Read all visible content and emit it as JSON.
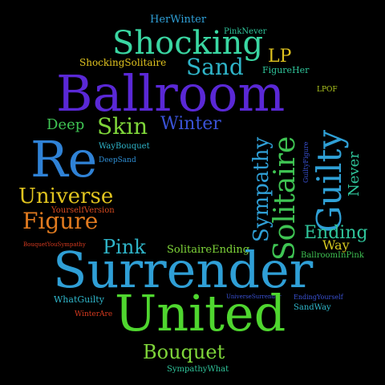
{
  "words": [
    {
      "text": "HerWinter",
      "color": "#2f9fd6"
    },
    {
      "text": "PinkNever",
      "color": "#2fc49a"
    },
    {
      "text": "Shocking",
      "color": "#3ad6a2"
    },
    {
      "text": "LP",
      "color": "#e0c31f"
    },
    {
      "text": "ShockingSolitaire",
      "color": "#e0c31f"
    },
    {
      "text": "Sand",
      "color": "#2fb5c9"
    },
    {
      "text": "FigureHer",
      "color": "#2fc49a"
    },
    {
      "text": "Ballroom",
      "color": "#5a28d6"
    },
    {
      "text": "LPOF",
      "color": "#b0c81f"
    },
    {
      "text": "Deep",
      "color": "#3fc453"
    },
    {
      "text": "Skin",
      "color": "#7fd63a"
    },
    {
      "text": "Winter",
      "color": "#3a52d6"
    },
    {
      "text": "WayBouquet",
      "color": "#2fb5c9"
    },
    {
      "text": "DeepSand",
      "color": "#2f8fd6"
    },
    {
      "text": "Re",
      "color": "#2f82d6"
    },
    {
      "text": "Universe",
      "color": "#e0c31f"
    },
    {
      "text": "YourselfVersion",
      "color": "#d64a1f"
    },
    {
      "text": "Figure",
      "color": "#e07a1f"
    },
    {
      "text": "BouquetYouSympathy",
      "color": "#d63a1f"
    },
    {
      "text": "Sympathy",
      "color": "#2f9fd6"
    },
    {
      "text": "Solitaire",
      "color": "#3fc453"
    },
    {
      "text": "Guilty",
      "color": "#2fa0d6"
    },
    {
      "text": "GuiltyFigure",
      "color": "#3a52d6"
    },
    {
      "text": "Never",
      "color": "#2fc49a"
    },
    {
      "text": "Ending",
      "color": "#2fc49a"
    },
    {
      "text": "Pink",
      "color": "#2fb5c9"
    },
    {
      "text": "SolitaireEnding",
      "color": "#7fd63a"
    },
    {
      "text": "Way",
      "color": "#d6c91f"
    },
    {
      "text": "BallroomInPink",
      "color": "#3fc453"
    },
    {
      "text": "Surrender",
      "color": "#2f9fd6"
    },
    {
      "text": "UniverseSurrender",
      "color": "#3a52d6"
    },
    {
      "text": "EndingYourself",
      "color": "#3a52d6"
    },
    {
      "text": "WhatGuilty",
      "color": "#2fb5c9"
    },
    {
      "text": "SandWay",
      "color": "#2fb5c9"
    },
    {
      "text": "WinterAre",
      "color": "#d63a1f"
    },
    {
      "text": "United",
      "color": "#4fd62f"
    },
    {
      "text": "Bouquet",
      "color": "#7fd63a"
    },
    {
      "text": "SympathyWhat",
      "color": "#2fc49a"
    }
  ]
}
